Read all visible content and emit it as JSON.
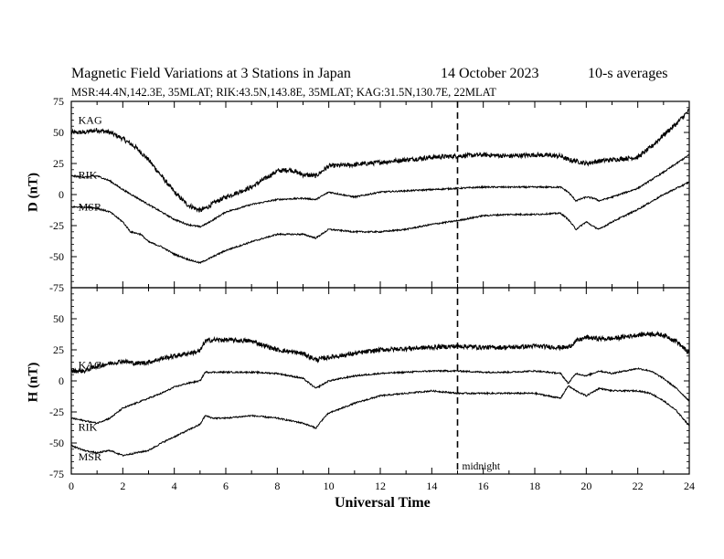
{
  "header": {
    "title": "Magnetic Field Variations at 3 Stations in Japan",
    "date": "14 October 2023",
    "averaging": "10-s averages",
    "stations_line": "MSR:44.4N,142.3E, 35MLAT;  RIK:43.5N,143.8E, 35MLAT;  KAG:31.5N,130.7E, 22MLAT"
  },
  "chart_data": [
    {
      "type": "line",
      "panel": "top",
      "ylabel": "D (nT)",
      "xlabel": "",
      "xlim": [
        0,
        24
      ],
      "ylim": [
        -75,
        75
      ],
      "yticks": [
        -75,
        -50,
        -25,
        0,
        25,
        50,
        75
      ],
      "grid": false,
      "series": [
        {
          "name": "KAG",
          "noise": 1.8,
          "x": [
            0,
            0.5,
            1,
            1.5,
            2,
            2.5,
            3,
            3.5,
            4,
            4.5,
            5,
            5.3,
            5.6,
            6,
            7,
            8,
            8.5,
            9,
            9.5,
            10,
            11,
            12,
            13,
            14,
            15,
            16,
            17,
            18,
            19,
            19.3,
            19.6,
            20,
            20.5,
            21,
            22,
            22.5,
            23,
            23.5,
            24
          ],
          "y": [
            50,
            50,
            52,
            50,
            45,
            38,
            28,
            15,
            2,
            -8,
            -13,
            -10,
            -6,
            -2,
            6,
            19,
            20,
            16,
            15,
            23,
            24,
            26,
            28,
            30,
            31,
            32,
            31,
            32,
            31,
            28,
            27,
            25,
            27,
            28,
            30,
            38,
            48,
            57,
            68
          ]
        },
        {
          "name": "RIK",
          "noise": 0.6,
          "x": [
            0,
            0.5,
            1,
            1.5,
            2,
            2.5,
            3,
            3.5,
            4,
            4.5,
            5,
            5.3,
            6,
            7,
            8,
            9,
            9.5,
            10,
            11,
            12,
            13,
            14,
            15,
            16,
            17,
            18,
            19,
            19.3,
            19.6,
            20,
            20.3,
            20.5,
            21,
            22,
            23,
            24
          ],
          "y": [
            15,
            14,
            15,
            11,
            4,
            -2,
            -8,
            -14,
            -20,
            -24,
            -26,
            -23,
            -14,
            -8,
            -4,
            -3,
            -4,
            2,
            -2,
            2,
            3,
            4,
            5,
            6,
            6,
            6,
            6,
            2,
            -5,
            -2,
            -3,
            -5,
            -2,
            5,
            18,
            32
          ]
        },
        {
          "name": "MSR",
          "noise": 0.6,
          "x": [
            0,
            0.5,
            1,
            1.5,
            2,
            2.3,
            2.7,
            3,
            3.5,
            4,
            4.5,
            5,
            5.3,
            6,
            7,
            8,
            9,
            9.5,
            10,
            11,
            12,
            13,
            14,
            15,
            16,
            17,
            18,
            19,
            19.3,
            19.6,
            20,
            20.3,
            20.5,
            21,
            22,
            23,
            24
          ],
          "y": [
            -10,
            -10,
            -11,
            -14,
            -22,
            -30,
            -32,
            -38,
            -42,
            -48,
            -52,
            -55,
            -52,
            -45,
            -38,
            -32,
            -32,
            -35,
            -28,
            -30,
            -30,
            -28,
            -24,
            -21,
            -17,
            -16,
            -16,
            -15,
            -20,
            -28,
            -22,
            -26,
            -28,
            -22,
            -12,
            0,
            10
          ]
        }
      ]
    },
    {
      "type": "line",
      "panel": "bottom",
      "ylabel": "H (nT)",
      "xlabel": "Universal Time",
      "xlim": [
        0,
        24
      ],
      "ylim": [
        -75,
        75
      ],
      "yticks": [
        -75,
        -50,
        -25,
        0,
        25,
        50,
        75
      ],
      "xticks": [
        0,
        2,
        4,
        6,
        8,
        10,
        12,
        14,
        16,
        18,
        20,
        22,
        24
      ],
      "grid": false,
      "series": [
        {
          "name": "KAG",
          "noise": 1.8,
          "x": [
            0,
            0.5,
            1,
            1.5,
            2,
            2.5,
            3,
            3.5,
            4,
            4.5,
            5,
            5.2,
            5.5,
            6,
            7,
            8,
            9,
            9.5,
            10,
            11,
            12,
            13,
            14,
            15,
            16,
            17,
            18,
            19,
            19.3,
            19.6,
            20,
            20.5,
            21,
            22,
            22.5,
            23,
            23.5,
            24
          ],
          "y": [
            8,
            8,
            12,
            14,
            16,
            14,
            15,
            18,
            20,
            22,
            24,
            32,
            33,
            33,
            32,
            25,
            22,
            17,
            19,
            22,
            25,
            26,
            27,
            28,
            27,
            27,
            28,
            27,
            27,
            32,
            35,
            34,
            34,
            37,
            38,
            37,
            32,
            22
          ]
        },
        {
          "name": "RIK",
          "noise": 0.6,
          "x": [
            0,
            0.5,
            1,
            1.5,
            2,
            2.5,
            3,
            3.5,
            4,
            4.5,
            5,
            5.2,
            5.5,
            6,
            7,
            8,
            9,
            9.5,
            10,
            11,
            12,
            13,
            14,
            15,
            16,
            17,
            18,
            19,
            19.3,
            19.6,
            20,
            20.5,
            21,
            22,
            22.5,
            23,
            23.5,
            24
          ],
          "y": [
            -30,
            -32,
            -34,
            -30,
            -22,
            -18,
            -14,
            -10,
            -5,
            -2,
            0,
            7,
            7,
            7,
            7,
            6,
            2,
            -6,
            0,
            4,
            6,
            7,
            8,
            8,
            7,
            7,
            8,
            6,
            -2,
            6,
            4,
            8,
            6,
            10,
            8,
            2,
            -6,
            -16
          ]
        },
        {
          "name": "MSR",
          "noise": 0.6,
          "x": [
            0,
            0.5,
            1,
            1.5,
            2,
            2.5,
            3,
            3.5,
            4,
            4.5,
            5,
            5.2,
            5.5,
            6,
            7,
            8,
            9,
            9.5,
            9.8,
            10,
            11,
            12,
            13,
            14,
            15,
            16,
            17,
            18,
            19,
            19.3,
            19.6,
            20,
            20.5,
            21,
            22,
            22.5,
            23,
            23.5,
            24
          ],
          "y": [
            -52,
            -56,
            -58,
            -56,
            -60,
            -58,
            -56,
            -50,
            -45,
            -40,
            -35,
            -28,
            -30,
            -30,
            -28,
            -30,
            -34,
            -38,
            -30,
            -26,
            -18,
            -12,
            -10,
            -8,
            -10,
            -10,
            -10,
            -10,
            -14,
            -4,
            -8,
            -12,
            -6,
            -8,
            -8,
            -10,
            -16,
            -24,
            -36
          ]
        }
      ]
    }
  ],
  "labels": {
    "top": [
      {
        "text": "KAG",
        "t": 0.2,
        "v": 57
      },
      {
        "text": "RIK",
        "t": 0.2,
        "v": 13
      },
      {
        "text": "MSR",
        "t": 0.2,
        "v": -13
      }
    ],
    "bottom": [
      {
        "text": "KAG",
        "t": 0.2,
        "v": 10
      },
      {
        "text": "RIK",
        "t": 0.2,
        "v": -40
      },
      {
        "text": "MSR",
        "t": 0.2,
        "v": -64
      }
    ]
  },
  "midnight": {
    "t": 15,
    "label": "midnight"
  }
}
